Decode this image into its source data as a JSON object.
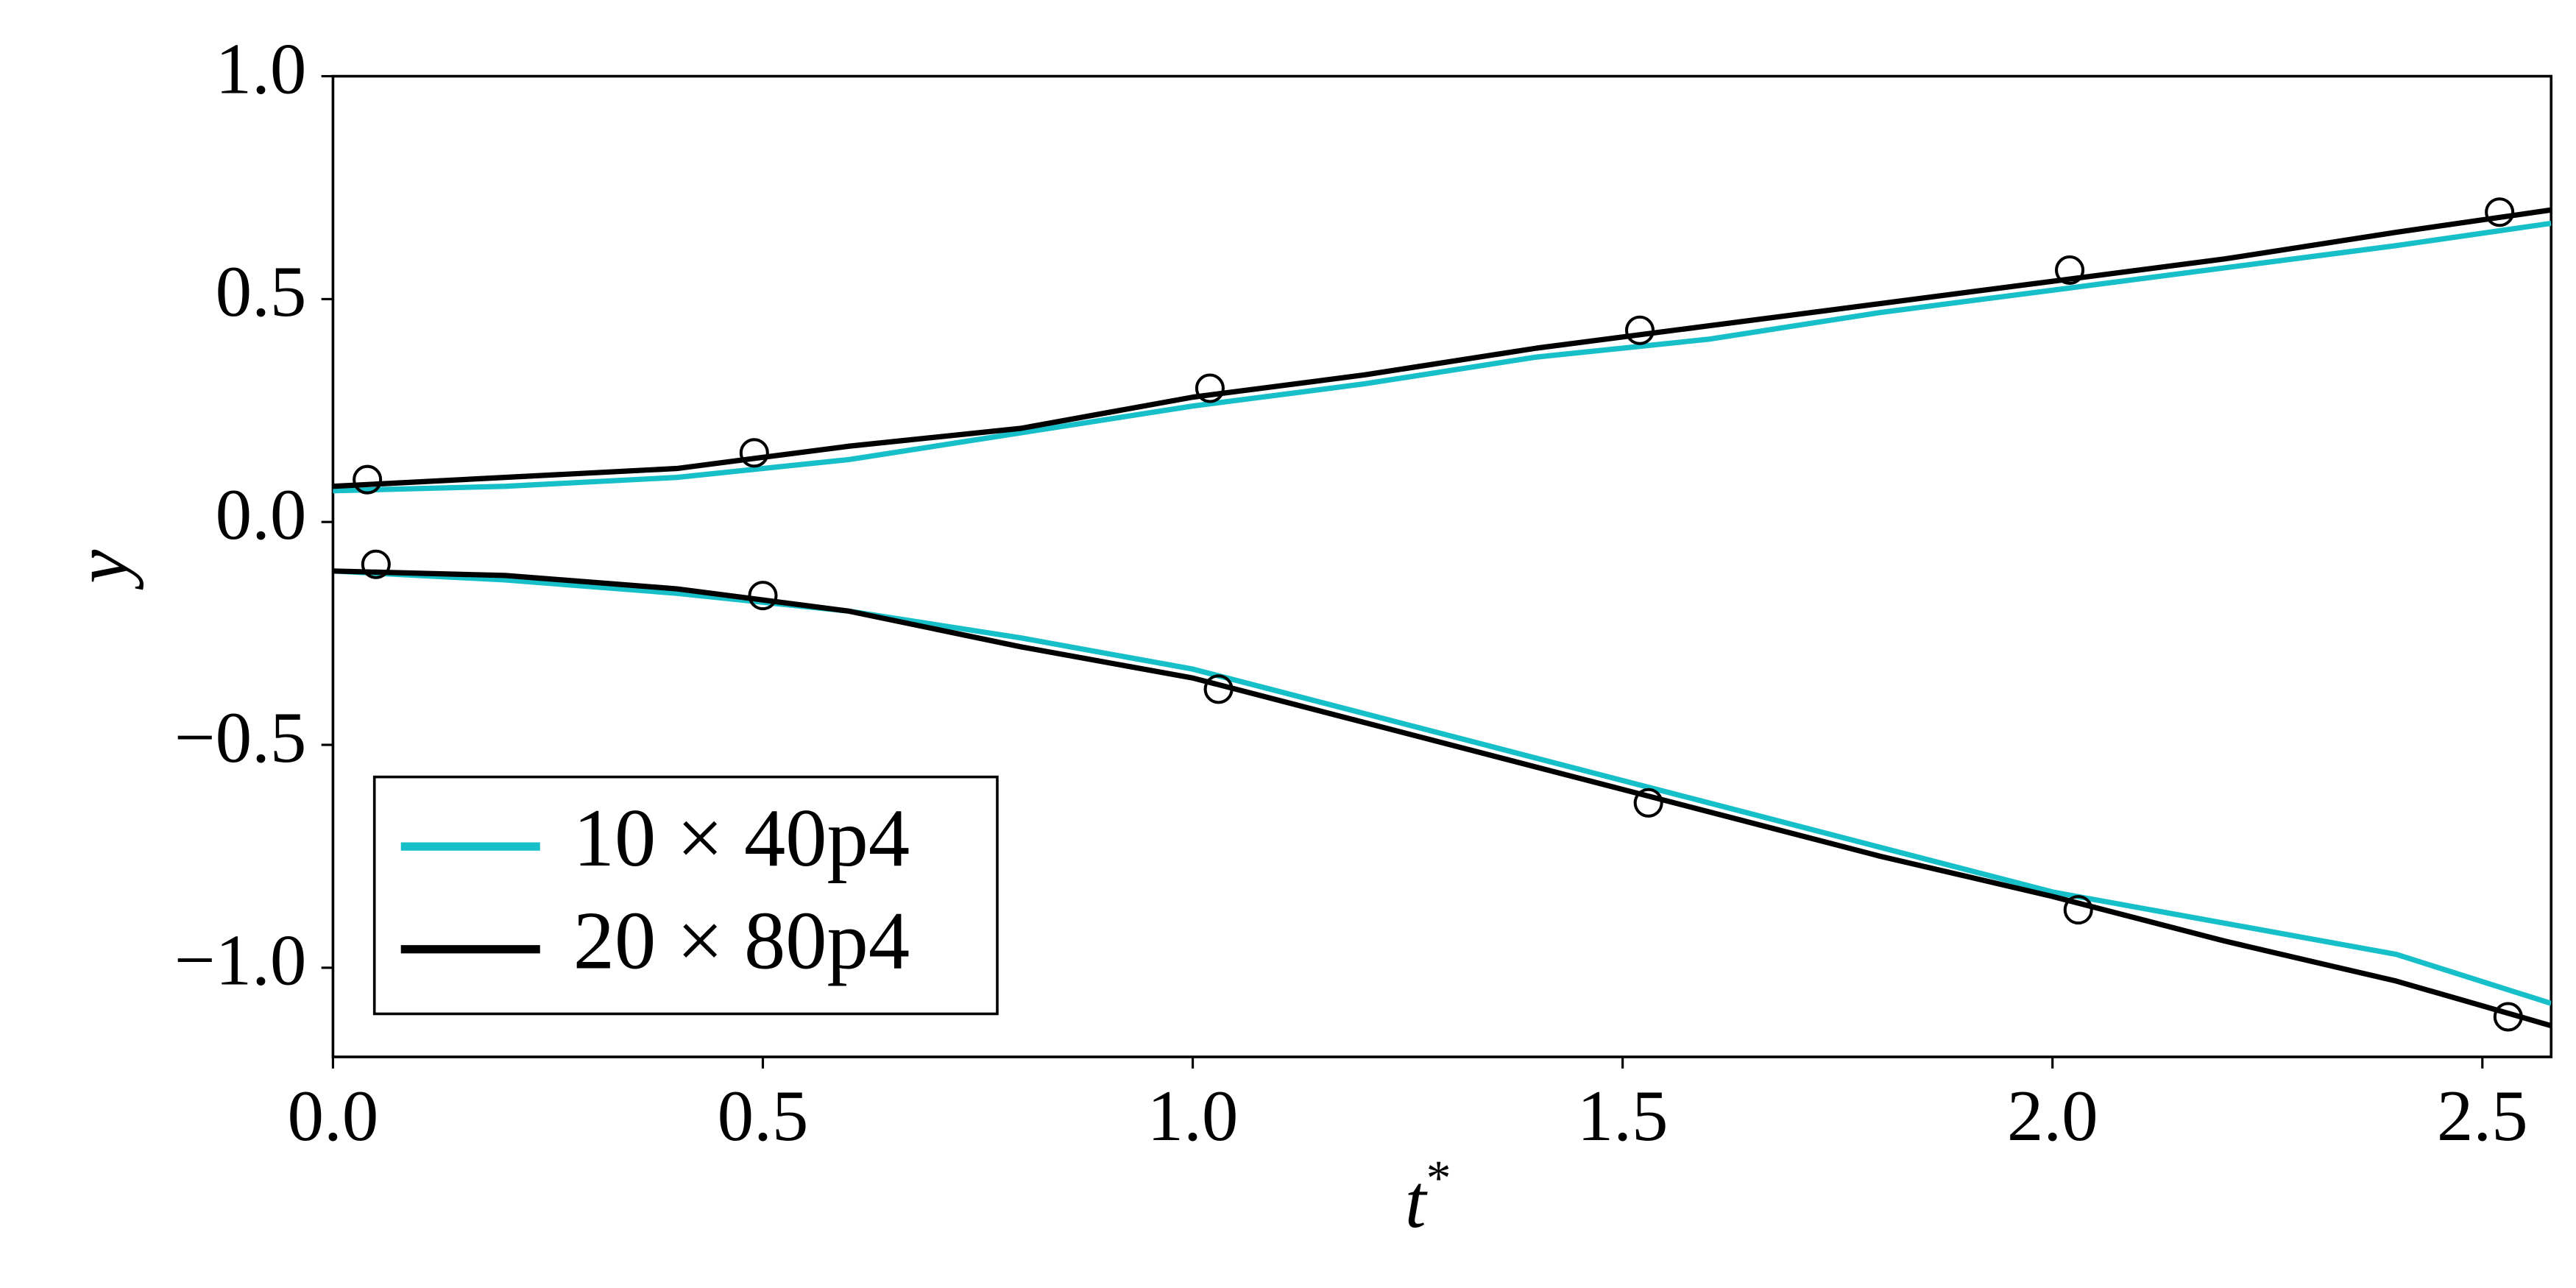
{
  "chart_data": {
    "type": "line",
    "xlabel": "t",
    "xlabel_sup": "*",
    "ylabel": "y",
    "xlim": [
      0,
      2.58
    ],
    "ylim": [
      -1.2,
      1.0
    ],
    "xticks": [
      {
        "value": 0,
        "label": "0.0"
      },
      {
        "value": 0.5,
        "label": "0.5"
      },
      {
        "value": 1,
        "label": "1.0"
      },
      {
        "value": 1.5,
        "label": "1.5"
      },
      {
        "value": 2,
        "label": "2.0"
      },
      {
        "value": 2.5,
        "label": "2.5"
      }
    ],
    "yticks": [
      {
        "value": -1,
        "label": "−1.0"
      },
      {
        "value": -0.5,
        "label": "−0.5"
      },
      {
        "value": 0,
        "label": "0.0"
      },
      {
        "value": 0.5,
        "label": "0.5"
      },
      {
        "value": 1,
        "label": "1.0"
      }
    ],
    "grid": false,
    "legend": "lower left",
    "x": [
      0,
      0.2,
      0.4,
      0.6,
      0.8,
      1.0,
      1.2,
      1.4,
      1.6,
      1.8,
      2.0,
      2.2,
      2.4,
      2.58
    ],
    "series": [
      {
        "name": "10 × 40p4",
        "color": "#17c0c8",
        "values": [
          0.07,
          0.08,
          0.1,
          0.14,
          0.2,
          0.26,
          0.31,
          0.37,
          0.41,
          0.47,
          0.52,
          0.57,
          0.62,
          0.67
        ],
        "lower": [
          -0.11,
          -0.13,
          -0.16,
          -0.2,
          -0.26,
          -0.33,
          -0.43,
          -0.53,
          -0.63,
          -0.73,
          -0.83,
          -0.9,
          -0.97,
          -1.08
        ]
      },
      {
        "name": "20 × 80p4",
        "color": "#000000",
        "values": [
          0.08,
          0.1,
          0.12,
          0.17,
          0.21,
          0.28,
          0.33,
          0.39,
          0.44,
          0.49,
          0.54,
          0.59,
          0.65,
          0.7
        ],
        "lower": [
          -0.11,
          -0.12,
          -0.15,
          -0.2,
          -0.28,
          -0.35,
          -0.45,
          -0.55,
          -0.65,
          -0.75,
          -0.84,
          -0.94,
          -1.03,
          -1.13
        ]
      }
    ],
    "markers": [
      {
        "x": [
          0.04,
          0.49,
          1.02,
          1.52,
          2.02,
          2.52
        ],
        "values": [
          0.095,
          0.155,
          0.3,
          0.43,
          0.565,
          0.695
        ]
      },
      {
        "x": [
          0.05,
          0.5,
          1.03,
          1.53,
          2.03,
          2.53
        ],
        "values": [
          -0.095,
          -0.165,
          -0.375,
          -0.63,
          -0.87,
          -1.11
        ]
      }
    ]
  }
}
